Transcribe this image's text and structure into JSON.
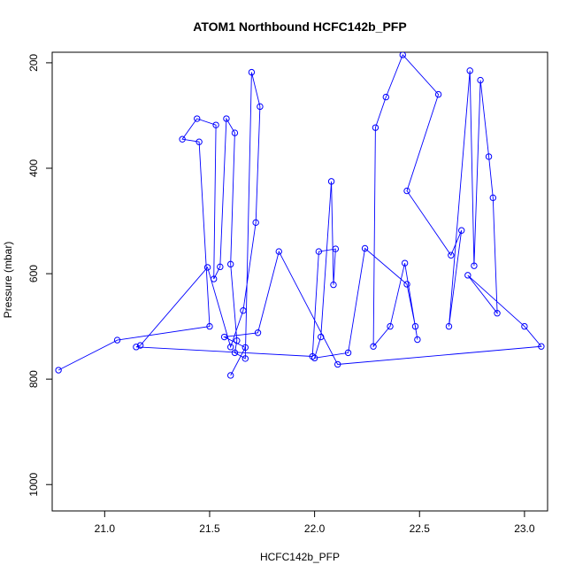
{
  "chart_data": {
    "type": "line",
    "title": "ATOM1 Northbound HCFC142b_PFP",
    "xlabel": "HCFC142b_PFP",
    "ylabel": "Pressure (mbar)",
    "xlim": [
      20.75,
      23.11
    ],
    "ylim": [
      1050,
      180
    ],
    "y_axis_inverted": true,
    "x_ticks": [
      "21.0",
      "21.5",
      "22.0",
      "22.5",
      "23.0"
    ],
    "y_ticks": [
      "200",
      "400",
      "600",
      "800",
      "1000"
    ],
    "series_color": "#0000ff",
    "marker": "open-circle",
    "grid": false,
    "legend": "none",
    "series": [
      {
        "x": [
          20.78,
          21.06,
          21.5,
          21.45,
          21.37,
          21.44,
          21.53,
          21.52,
          21.55,
          21.58,
          21.62,
          21.6,
          21.63,
          21.62,
          21.67,
          21.7,
          21.74,
          21.72,
          21.66,
          21.6,
          21.49,
          21.17,
          21.15,
          21.99,
          22.02,
          22.1,
          22.09,
          22.08,
          22.03,
          22.0,
          22.16,
          22.24,
          22.44,
          22.48,
          22.49,
          22.43,
          22.36,
          22.28,
          22.29,
          22.34,
          22.42,
          22.59,
          22.44,
          22.65,
          22.7,
          22.64,
          22.74,
          22.76,
          22.79,
          22.83,
          22.85,
          22.87,
          22.73,
          23.0,
          23.08,
          22.11,
          21.83,
          21.73,
          21.57,
          21.67,
          21.6
        ],
        "y": [
          783,
          726,
          700,
          350,
          345,
          306,
          318,
          610,
          587,
          306,
          333,
          582,
          727,
          750,
          761,
          218,
          283,
          503,
          670,
          739,
          588,
          736,
          739,
          757,
          558,
          553,
          621,
          425,
          720,
          760,
          750,
          552,
          620,
          700,
          725,
          580,
          700,
          738,
          323,
          265,
          185,
          260,
          443,
          565,
          518,
          700,
          215,
          585,
          233,
          378,
          456,
          675,
          603,
          700,
          738,
          772,
          558,
          712,
          720,
          740,
          793
        ]
      }
    ]
  }
}
